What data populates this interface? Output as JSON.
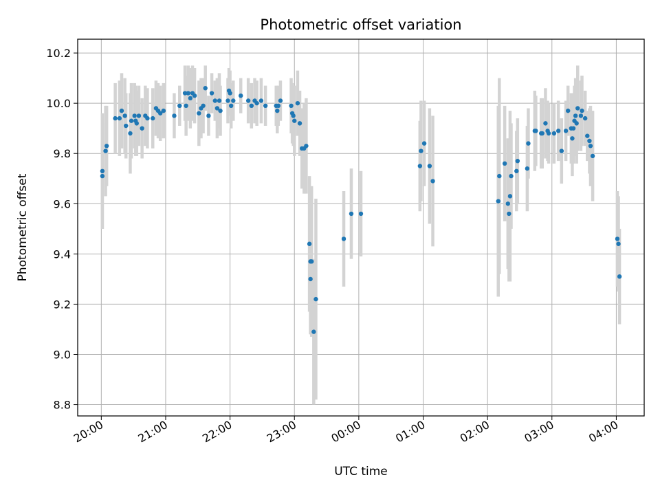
{
  "chart_data": {
    "type": "scatter",
    "title": "Photometric offset variation",
    "xlabel": "UTC time",
    "ylabel": "Photometric offset",
    "x_unit": "hours",
    "xlim": [
      "19:38",
      "04:26"
    ],
    "ylim": [
      8.755,
      10.255
    ],
    "grid": true,
    "legend": "none",
    "x_ticks": [
      "20:00",
      "21:00",
      "22:00",
      "23:00",
      "00:00",
      "01:00",
      "02:00",
      "03:00",
      "04:00"
    ],
    "y_ticks": [
      "8.8",
      "9.0",
      "9.2",
      "9.4",
      "9.6",
      "9.8",
      "10.0",
      "10.2"
    ],
    "colors": {
      "point": "#1f77b4",
      "errorbar": "#d3d3d3",
      "grid": "#b0b0b0"
    },
    "series": [
      {
        "points": [
          [
            "20:01",
            9.71,
            0.21
          ],
          [
            "20:01",
            9.73,
            0.23
          ],
          [
            "20:04",
            9.81,
            0.18
          ],
          [
            "20:05",
            9.83,
            0.16
          ],
          [
            "20:13",
            9.94,
            0.14
          ],
          [
            "20:17",
            9.94,
            0.15
          ],
          [
            "20:19",
            9.97,
            0.15
          ],
          [
            "20:22",
            9.95,
            0.15
          ],
          [
            "20:23",
            9.91,
            0.13
          ],
          [
            "20:27",
            9.88,
            0.16
          ],
          [
            "20:28",
            9.93,
            0.15
          ],
          [
            "20:31",
            9.95,
            0.13
          ],
          [
            "20:32",
            9.93,
            0.14
          ],
          [
            "20:33",
            9.92,
            0.13
          ],
          [
            "20:35",
            9.95,
            0.12
          ],
          [
            "20:38",
            9.9,
            0.12
          ],
          [
            "20:41",
            9.95,
            0.12
          ],
          [
            "20:43",
            9.94,
            0.12
          ],
          [
            "20:48",
            9.94,
            0.12
          ],
          [
            "20:51",
            9.98,
            0.11
          ],
          [
            "20:53",
            9.97,
            0.11
          ],
          [
            "20:55",
            9.96,
            0.11
          ],
          [
            "20:58",
            9.97,
            0.11
          ],
          [
            "21:08",
            9.95,
            0.09
          ],
          [
            "21:13",
            9.99,
            0.08
          ],
          [
            "21:18",
            10.04,
            0.11
          ],
          [
            "21:19",
            9.99,
            0.12
          ],
          [
            "21:21",
            10.04,
            0.11
          ],
          [
            "21:23",
            10.02,
            0.12
          ],
          [
            "21:25",
            10.04,
            0.11
          ],
          [
            "21:27",
            10.03,
            0.11
          ],
          [
            "21:31",
            9.96,
            0.13
          ],
          [
            "21:33",
            9.98,
            0.12
          ],
          [
            "21:35",
            9.99,
            0.11
          ],
          [
            "21:37",
            10.06,
            0.09
          ],
          [
            "21:40",
            9.95,
            0.08
          ],
          [
            "21:43",
            10.04,
            0.08
          ],
          [
            "21:46",
            10.01,
            0.08
          ],
          [
            "21:48",
            9.98,
            0.12
          ],
          [
            "21:50",
            10.01,
            0.11
          ],
          [
            "21:51",
            9.97,
            0.1
          ],
          [
            "21:58",
            10.01,
            0.09
          ],
          [
            "21:59",
            10.05,
            0.09
          ],
          [
            "22:00",
            10.04,
            0.09
          ],
          [
            "22:01",
            9.99,
            0.09
          ],
          [
            "22:03",
            10.01,
            0.08
          ],
          [
            "22:10",
            10.03,
            0.07
          ],
          [
            "22:17",
            10.01,
            0.09
          ],
          [
            "22:20",
            9.99,
            0.09
          ],
          [
            "22:23",
            10.01,
            0.09
          ],
          [
            "22:25",
            10.0,
            0.09
          ],
          [
            "22:29",
            10.01,
            0.09
          ],
          [
            "22:33",
            9.99,
            0.08
          ],
          [
            "22:43",
            9.99,
            0.08
          ],
          [
            "22:44",
            9.97,
            0.09
          ],
          [
            "22:45",
            9.99,
            0.08
          ],
          [
            "22:47",
            10.01,
            0.08
          ],
          [
            "22:57",
            9.99,
            0.11
          ],
          [
            "22:58",
            9.96,
            0.12
          ],
          [
            "22:59",
            9.95,
            0.12
          ],
          [
            "23:00",
            9.93,
            0.14
          ],
          [
            "23:03",
            10.0,
            0.13
          ],
          [
            "23:05",
            9.92,
            0.13
          ],
          [
            "23:07",
            9.82,
            0.16
          ],
          [
            "23:09",
            9.82,
            0.18
          ],
          [
            "23:11",
            9.83,
            0.19
          ],
          [
            "23:14",
            9.44,
            0.27
          ],
          [
            "23:15",
            9.3,
            0.22
          ],
          [
            "23:15",
            9.37,
            0.29
          ],
          [
            "23:16",
            9.37,
            0.3
          ],
          [
            "23:18",
            9.09,
            0.29
          ],
          [
            "23:20",
            9.22,
            0.4
          ],
          [
            "23:46",
            9.46,
            0.19
          ],
          [
            "23:53",
            9.56,
            0.18
          ],
          [
            "00:02",
            9.56,
            0.17
          ],
          [
            "00:57",
            9.75,
            0.18
          ],
          [
            "00:58",
            9.81,
            0.2
          ],
          [
            "01:01",
            9.84,
            0.17
          ],
          [
            "01:06",
            9.75,
            0.23
          ],
          [
            "01:09",
            9.69,
            0.26
          ],
          [
            "02:10",
            9.61,
            0.38
          ],
          [
            "02:11",
            9.71,
            0.39
          ],
          [
            "02:16",
            9.76,
            0.23
          ],
          [
            "02:19",
            9.6,
            0.26
          ],
          [
            "02:20",
            9.56,
            0.27
          ],
          [
            "02:21",
            9.63,
            0.34
          ],
          [
            "02:22",
            9.71,
            0.21
          ],
          [
            "02:27",
            9.73,
            0.16
          ],
          [
            "02:28",
            9.77,
            0.17
          ],
          [
            "02:37",
            9.74,
            0.17
          ],
          [
            "02:38",
            9.84,
            0.14
          ],
          [
            "02:44",
            9.89,
            0.16
          ],
          [
            "02:45",
            9.89,
            0.14
          ],
          [
            "02:50",
            9.88,
            0.14
          ],
          [
            "02:51",
            9.88,
            0.14
          ],
          [
            "02:54",
            9.92,
            0.14
          ],
          [
            "02:56",
            9.89,
            0.12
          ],
          [
            "02:57",
            9.88,
            0.12
          ],
          [
            "03:02",
            9.88,
            0.12
          ],
          [
            "03:06",
            9.89,
            0.12
          ],
          [
            "03:09",
            9.81,
            0.13
          ],
          [
            "03:13",
            9.89,
            0.12
          ],
          [
            "03:15",
            9.97,
            0.1
          ],
          [
            "03:18",
            9.9,
            0.14
          ],
          [
            "03:19",
            9.86,
            0.15
          ],
          [
            "03:20",
            9.9,
            0.14
          ],
          [
            "03:21",
            9.93,
            0.14
          ],
          [
            "03:22",
            9.95,
            0.15
          ],
          [
            "03:23",
            9.92,
            0.16
          ],
          [
            "03:24",
            9.98,
            0.17
          ],
          [
            "03:27",
            9.95,
            0.14
          ],
          [
            "03:28",
            9.97,
            0.14
          ],
          [
            "03:31",
            9.94,
            0.11
          ],
          [
            "03:33",
            9.87,
            0.1
          ],
          [
            "03:35",
            9.85,
            0.13
          ],
          [
            "03:36",
            9.83,
            0.16
          ],
          [
            "03:38",
            9.79,
            0.18
          ],
          [
            "04:01",
            9.46,
            0.19
          ],
          [
            "04:02",
            9.44,
            0.19
          ],
          [
            "04:03",
            9.31,
            0.19
          ]
        ]
      }
    ]
  }
}
